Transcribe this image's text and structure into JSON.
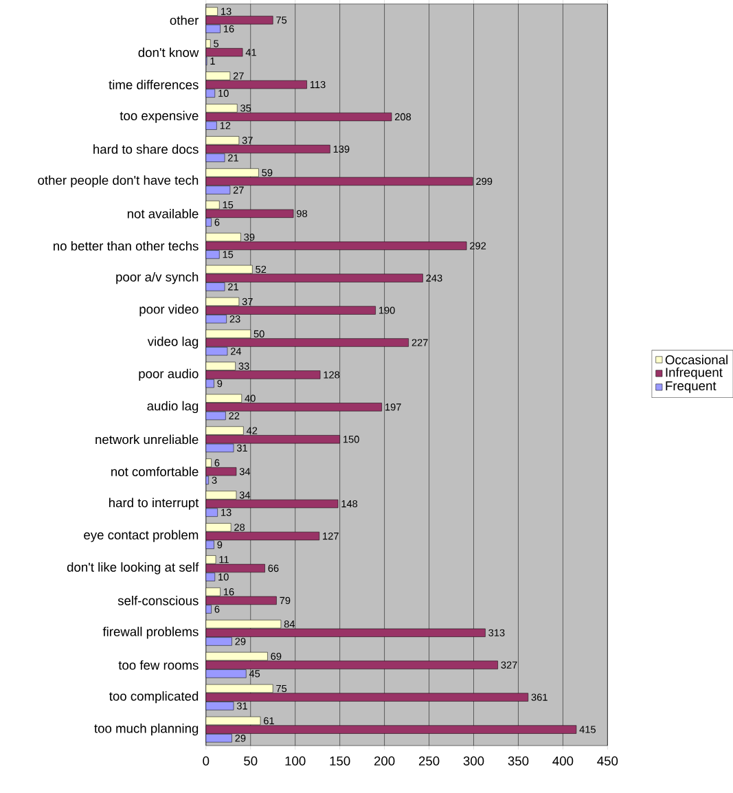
{
  "chart_data": {
    "type": "bar",
    "orientation": "horizontal",
    "categories": [
      "other",
      "don't know",
      "time differences",
      "too expensive",
      "hard to share docs",
      "other people don't have tech",
      "not available",
      "no better than other techs",
      "poor a/v synch",
      "poor video",
      "video lag",
      "poor audio",
      "audio lag",
      "network unreliable",
      "not comfortable",
      "hard to interrupt",
      "eye contact problem",
      "don't like looking at self",
      "self-conscious",
      "firewall problems",
      "too few rooms",
      "too complicated",
      "too much planning"
    ],
    "series": [
      {
        "name": "Occasional",
        "color": "#ffffcc",
        "values": [
          13,
          5,
          27,
          35,
          37,
          59,
          15,
          39,
          52,
          37,
          50,
          33,
          40,
          42,
          6,
          34,
          28,
          11,
          16,
          84,
          69,
          75,
          61
        ]
      },
      {
        "name": "Infrequent",
        "color": "#993366",
        "values": [
          75,
          41,
          113,
          208,
          139,
          299,
          98,
          292,
          243,
          190,
          227,
          128,
          197,
          150,
          34,
          148,
          127,
          66,
          79,
          313,
          327,
          361,
          415
        ]
      },
      {
        "name": "Frequent",
        "color": "#9999ff",
        "values": [
          16,
          1,
          10,
          12,
          21,
          27,
          6,
          15,
          21,
          23,
          24,
          9,
          22,
          31,
          3,
          13,
          9,
          10,
          6,
          29,
          45,
          31,
          29
        ]
      }
    ],
    "xlim": [
      0,
      450
    ],
    "xticks": [
      0,
      50,
      100,
      150,
      200,
      250,
      300,
      350,
      400,
      450
    ],
    "grid": "x",
    "legend": "right",
    "data_labels": true
  }
}
